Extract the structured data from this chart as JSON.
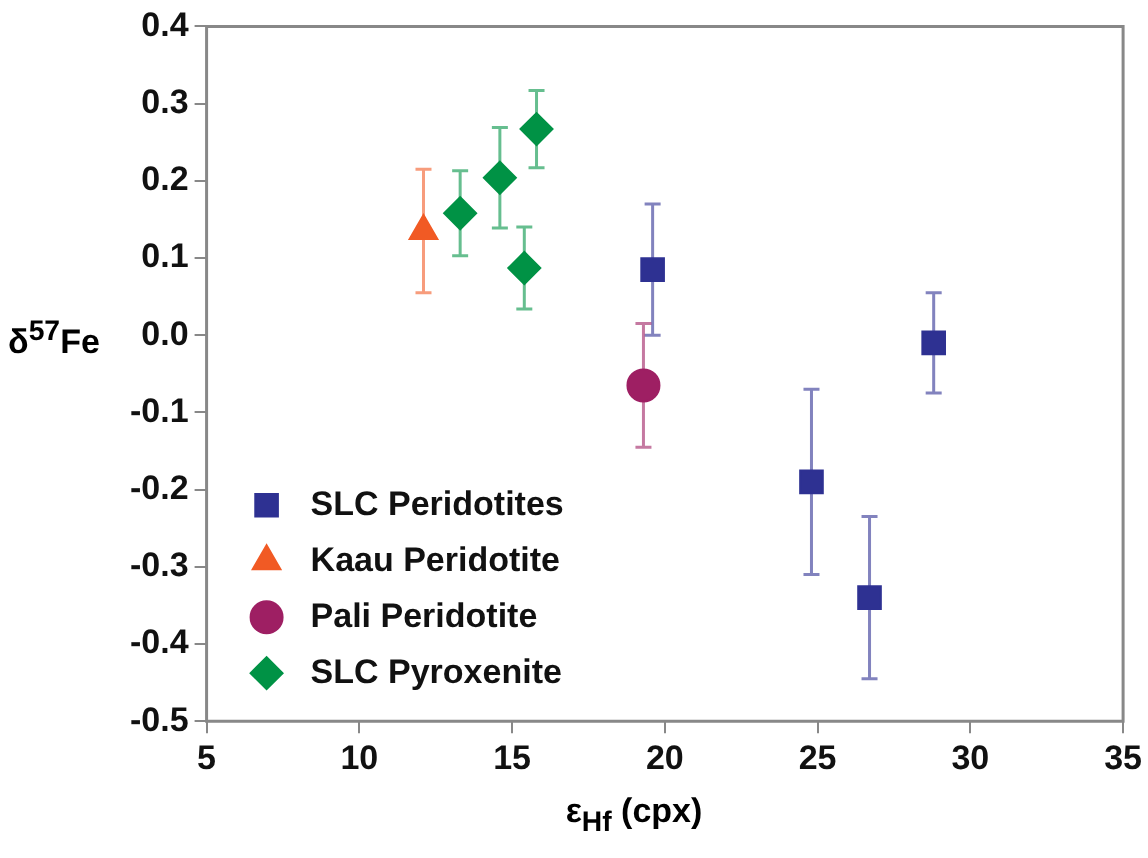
{
  "chart_data": {
    "type": "scatter",
    "xlabel": "ε$_{Hf}$ (cpx)",
    "ylabel": "δ$^{57}$Fe",
    "xlim": [
      5,
      35
    ],
    "xticks": [
      5,
      10,
      15,
      20,
      25,
      30,
      35
    ],
    "ylim": [
      -0.5,
      0.4
    ],
    "yticks": [
      -0.5,
      -0.4,
      -0.3,
      -0.2,
      -0.1,
      {
        "value": 0,
        "label": "0.0"
      },
      0.1,
      0.2,
      0.3,
      0.4
    ],
    "grid": false,
    "legend": "bottom left",
    "series": [
      {
        "name": "SLC Peridotites",
        "color": "#2e3192",
        "marker": "square",
        "x": [
          19.6,
          28.8,
          24.8,
          26.7
        ],
        "values": [
          0.085,
          -0.01,
          -0.19,
          -0.34
        ],
        "errors": [
          0.085,
          0.065,
          0.12,
          0.105
        ]
      },
      {
        "name": "Kaau Peridotite",
        "color": "#f15a24",
        "marker": "triangle",
        "x": [
          12.1
        ],
        "values": [
          0.135
        ],
        "errors": [
          0.08
        ]
      },
      {
        "name": "Pali Peridotite",
        "color": "#9e1f63",
        "marker": "circle",
        "x": [
          19.3
        ],
        "values": [
          -0.065
        ],
        "errors": [
          0.08
        ]
      },
      {
        "name": "SLC Pyroxenite",
        "color": "#009245",
        "marker": "diamond",
        "x": [
          13.3,
          14.6,
          15.8,
          15.4
        ],
        "values": [
          0.158,
          0.204,
          0.267,
          0.087
        ],
        "errors": [
          0.055,
          0.065,
          0.05,
          0.053
        ]
      }
    ]
  }
}
